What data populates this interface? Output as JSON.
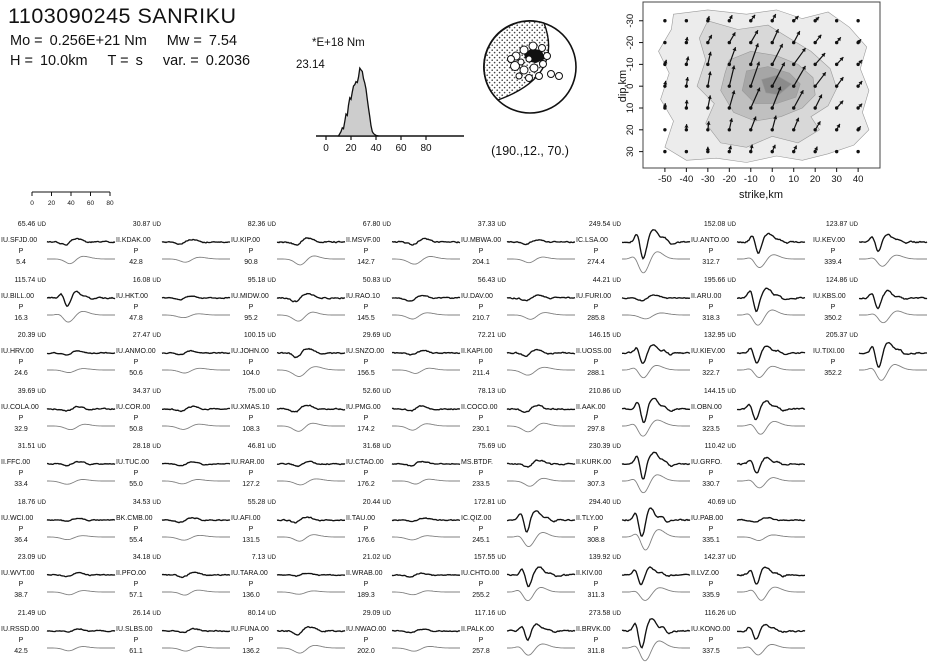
{
  "header": {
    "title": "1103090245 SANRIKU",
    "mo_label": "Mo =",
    "mo_value": "0.256E+21 Nm",
    "mw_label": "Mw =",
    "mw_value": "7.54",
    "h_label": "H =",
    "h_value": "10.0km",
    "t_label": "T =",
    "t_value": "s",
    "var_label": "var. =",
    "var_value": "0.2036"
  },
  "chart_data": [
    {
      "type": "area",
      "name": "source-time-function",
      "unit_label": "*E+18 Nm",
      "peak_label": "23.14",
      "peak_moment_rate_E18Nm": 23.14,
      "x_ticks": [
        0,
        20,
        40,
        60,
        80
      ],
      "xlim": [
        0,
        90
      ],
      "x": [
        10,
        12,
        13,
        14,
        15,
        16,
        17,
        18,
        19,
        20,
        21,
        22,
        23,
        24,
        25,
        26,
        27,
        28,
        29,
        30,
        31,
        32,
        33,
        34,
        35,
        36,
        37,
        38,
        40,
        42
      ],
      "y": [
        0,
        1.5,
        2.8,
        2.5,
        5,
        7.5,
        7,
        10.5,
        13,
        12.5,
        15,
        17,
        17.5,
        18.5,
        18.2,
        20,
        23.1,
        22.5,
        22,
        19.5,
        18,
        16,
        12.5,
        9.5,
        6.5,
        3.5,
        1.5,
        0.8,
        0.2,
        0
      ]
    },
    {
      "type": "beachball",
      "name": "focal-mechanism",
      "caption": "(190.,12., 70.)",
      "strike_dip_rake": [
        190,
        12,
        70
      ]
    },
    {
      "type": "contour-vector-map",
      "name": "slip-distribution",
      "xlabel": "strike,km",
      "ylabel": "dip,km",
      "x_ticks": [
        -50,
        -40,
        -30,
        -20,
        -10,
        0,
        10,
        20,
        30,
        40
      ],
      "y_ticks": [
        -30,
        -20,
        -10,
        0,
        10,
        20,
        30
      ],
      "contour_shades": [
        "#ececec",
        "#d8d8d8",
        "#c0c0c0",
        "#a6a6a6",
        "#8b8b8b"
      ],
      "contours": [
        [
          [
            -46,
            -33
          ],
          [
            -30,
            -35
          ],
          [
            -12,
            -33
          ],
          [
            2,
            -35
          ],
          [
            14,
            -31
          ],
          [
            26,
            -34
          ],
          [
            36,
            -27
          ],
          [
            44,
            -18
          ],
          [
            41,
            -8
          ],
          [
            45,
            2
          ],
          [
            42,
            12
          ],
          [
            45,
            20
          ],
          [
            38,
            27
          ],
          [
            26,
            31
          ],
          [
            14,
            34
          ],
          [
            2,
            32
          ],
          [
            -12,
            35
          ],
          [
            -26,
            33
          ],
          [
            -40,
            34
          ],
          [
            -50,
            28
          ],
          [
            -46,
            16
          ],
          [
            -52,
            6
          ],
          [
            -48,
            -6
          ],
          [
            -53,
            -16
          ],
          [
            -47,
            -26
          ]
        ],
        [
          [
            -30,
            -30
          ],
          [
            -16,
            -26
          ],
          [
            -2,
            -28
          ],
          [
            8,
            -22
          ],
          [
            18,
            -16
          ],
          [
            27,
            -8
          ],
          [
            30,
            1
          ],
          [
            26,
            9
          ],
          [
            18,
            14
          ],
          [
            22,
            20
          ],
          [
            12,
            26
          ],
          [
            0,
            23
          ],
          [
            -12,
            28
          ],
          [
            -24,
            26
          ],
          [
            -31,
            17
          ],
          [
            -27,
            8
          ],
          [
            -35,
            0
          ],
          [
            -31,
            -12
          ],
          [
            -34,
            -22
          ]
        ],
        [
          [
            -20,
            -12
          ],
          [
            -10,
            -16
          ],
          [
            2,
            -14
          ],
          [
            12,
            -10
          ],
          [
            19,
            -4
          ],
          [
            20,
            4
          ],
          [
            14,
            10
          ],
          [
            4,
            14
          ],
          [
            -8,
            16
          ],
          [
            -18,
            12
          ],
          [
            -24,
            2
          ],
          [
            -22,
            -6
          ]
        ],
        [
          [
            -12,
            -7
          ],
          [
            -2,
            -9
          ],
          [
            8,
            -6
          ],
          [
            13,
            -1
          ],
          [
            11,
            5
          ],
          [
            2,
            8
          ],
          [
            -8,
            8
          ],
          [
            -14,
            2
          ]
        ],
        [
          [
            -5,
            -3
          ],
          [
            2,
            -5
          ],
          [
            9,
            -1
          ],
          [
            3,
            4
          ],
          [
            -3,
            3
          ]
        ]
      ],
      "slip_maximum_at": [
        0,
        0
      ]
    },
    {
      "type": "table",
      "name": "waveform-stations",
      "scale_ticks": [
        0,
        20,
        40,
        60,
        80
      ],
      "columns": [
        "amplitude",
        "component",
        "station",
        "phase",
        "azimuth"
      ],
      "rows": [
        [
          "65.46",
          "UD",
          "IU.SFJD.00",
          "P",
          "5.4"
        ],
        [
          "115.74",
          "UD",
          "IU.BILL.00",
          "P",
          "16.3"
        ],
        [
          "20.39",
          "UD",
          "IU.HRV.00",
          "P",
          "24.6"
        ],
        [
          "39.69",
          "UD",
          "IU.COLA.00",
          "P",
          "32.9"
        ],
        [
          "31.51",
          "UD",
          "II.FFC.00",
          "P",
          "33.4"
        ],
        [
          "18.76",
          "UD",
          "IU.WCI.00",
          "P",
          "36.4"
        ],
        [
          "23.09",
          "UD",
          "IU.WVT.00",
          "P",
          "38.7"
        ],
        [
          "21.49",
          "UD",
          "IU.RSSD.00",
          "P",
          "42.5"
        ],
        [
          "30.87",
          "UD",
          "II.KDAK.00",
          "P",
          "42.8"
        ],
        [
          "16.08",
          "UD",
          "IU.HKT.00",
          "P",
          "47.8"
        ],
        [
          "27.47",
          "UD",
          "IU.ANMO.00",
          "P",
          "50.6"
        ],
        [
          "34.37",
          "UD",
          "IU.COR.00",
          "P",
          "50.8"
        ],
        [
          "28.18",
          "UD",
          "IU.TUC.00",
          "P",
          "55.0"
        ],
        [
          "34.53",
          "UD",
          "BK.CMB.00",
          "P",
          "55.4"
        ],
        [
          "34.18",
          "UD",
          "II.PFO.00",
          "P",
          "57.1"
        ],
        [
          "26.14",
          "UD",
          "IU.SLBS.00",
          "P",
          "61.1"
        ],
        [
          "82.36",
          "UD",
          "IU.KIP.00",
          "P",
          "90.8"
        ],
        [
          "95.18",
          "UD",
          "IU.MIDW.00",
          "P",
          "95.2"
        ],
        [
          "100.15",
          "UD",
          "IU.JOHN.00",
          "P",
          "104.0"
        ],
        [
          "75.00",
          "UD",
          "IU.XMAS.10",
          "P",
          "108.3"
        ],
        [
          "46.81",
          "UD",
          "IU.RAR.00",
          "P",
          "127.2"
        ],
        [
          "55.28",
          "UD",
          "IU.AFI.00",
          "P",
          "131.5"
        ],
        [
          "7.13",
          "UD",
          "IU.TARA.00",
          "P",
          "136.0"
        ],
        [
          "80.14",
          "UD",
          "IU.FUNA.00",
          "P",
          "136.2"
        ],
        [
          "67.80",
          "UD",
          "II.MSVF.00",
          "P",
          "142.7"
        ],
        [
          "50.83",
          "UD",
          "IU.RAO.10",
          "P",
          "145.5"
        ],
        [
          "29.69",
          "UD",
          "IU.SNZO.00",
          "P",
          "156.5"
        ],
        [
          "52.60",
          "UD",
          "IU.PMG.00",
          "P",
          "174.2"
        ],
        [
          "31.68",
          "UD",
          "IU.CTAO.00",
          "P",
          "176.2"
        ],
        [
          "20.44",
          "UD",
          "II.TAU.00",
          "P",
          "176.6"
        ],
        [
          "21.02",
          "UD",
          "II.WRAB.00",
          "P",
          "189.3"
        ],
        [
          "29.09",
          "UD",
          "IU.NWAO.00",
          "P",
          "202.0"
        ],
        [
          "37.33",
          "UD",
          "IU.MBWA.00",
          "P",
          "204.1"
        ],
        [
          "56.43",
          "UD",
          "IU.DAV.00",
          "P",
          "210.7"
        ],
        [
          "72.21",
          "UD",
          "II.KAPI.00",
          "P",
          "211.4"
        ],
        [
          "78.13",
          "UD",
          "II.COCO.00",
          "P",
          "230.1"
        ],
        [
          "75.69",
          "UD",
          "MS.BTDF.",
          "P",
          "233.5"
        ],
        [
          "172.81",
          "UD",
          "IC.QIZ.00",
          "P",
          "245.1"
        ],
        [
          "157.55",
          "UD",
          "IU.CHTO.00",
          "P",
          "255.2"
        ],
        [
          "117.16",
          "UD",
          "II.PALK.00",
          "P",
          "257.8"
        ],
        [
          "249.54",
          "UD",
          "IC.LSA.00",
          "P",
          "274.4"
        ],
        [
          "44.21",
          "UD",
          "IU.FURI.00",
          "P",
          "285.8"
        ],
        [
          "146.15",
          "UD",
          "II.UOSS.00",
          "P",
          "288.1"
        ],
        [
          "210.86",
          "UD",
          "II.AAK.00",
          "P",
          "297.8"
        ],
        [
          "230.39",
          "UD",
          "II.KURK.00",
          "P",
          "307.3"
        ],
        [
          "294.40",
          "UD",
          "II.TLY.00",
          "P",
          "308.8"
        ],
        [
          "139.92",
          "UD",
          "II.KIV.00",
          "P",
          "311.3"
        ],
        [
          "273.58",
          "UD",
          "II.BRVK.00",
          "P",
          "311.8"
        ],
        [
          "152.08",
          "UD",
          "IU.ANTO.00",
          "P",
          "312.7"
        ],
        [
          "195.66",
          "UD",
          "II.ARU.00",
          "P",
          "318.3"
        ],
        [
          "132.95",
          "UD",
          "IU.KIEV.00",
          "P",
          "322.7"
        ],
        [
          "144.15",
          "UD",
          "II.OBN.00",
          "P",
          "323.5"
        ],
        [
          "110.42",
          "UD",
          "IU.GRFO.",
          "P",
          "330.7"
        ],
        [
          "40.69",
          "UD",
          "IU.PAB.00",
          "P",
          "335.1"
        ],
        [
          "142.37",
          "UD",
          "II.LVZ.00",
          "P",
          "335.9"
        ],
        [
          "116.26",
          "UD",
          "IU.KONO.00",
          "P",
          "337.5"
        ],
        [
          "123.87",
          "UD",
          "IU.KEV.00",
          "P",
          "339.4"
        ],
        [
          "124.86",
          "UD",
          "IU.KBS.00",
          "P",
          "350.2"
        ],
        [
          "205.37",
          "UD",
          "IU.TIXI.00",
          "P",
          "352.2"
        ]
      ]
    }
  ]
}
